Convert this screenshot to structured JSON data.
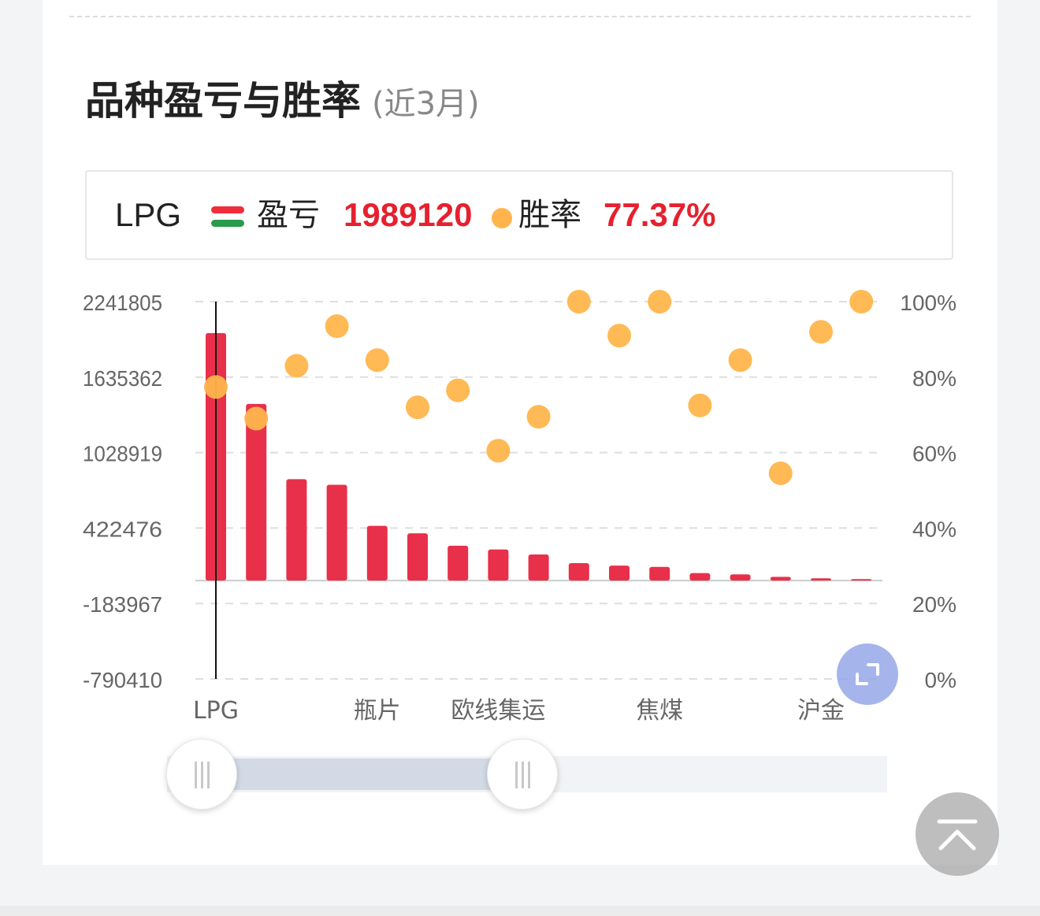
{
  "header": {
    "title": "品种盈亏与胜率",
    "subtitle": "(近3月)"
  },
  "legend": {
    "selected_name": "LPG",
    "pnl_label": "盈亏",
    "pnl_value": "1989120",
    "winrate_label": "胜率",
    "winrate_value": "77.37%"
  },
  "colors": {
    "bar": "#e8304a",
    "dot": "#ffb54c",
    "value_red": "#e5212f",
    "swatch_red": "#ef2d3b",
    "swatch_green": "#2b9a4a"
  },
  "icons": {
    "expand": "expand-icon",
    "back_to_top": "arrow-up-icon",
    "slider_handle": "grip-icon"
  },
  "chart_data": {
    "type": "bar",
    "categories": [
      "LPG",
      "",
      "",
      "",
      "瓶片",
      "",
      "",
      "欧线集运",
      "",
      "",
      "",
      "焦煤",
      "",
      "",
      "",
      "沪金",
      ""
    ],
    "x_tick_labels": [
      "LPG",
      "瓶片",
      "欧线集运",
      "焦煤",
      "沪金"
    ],
    "series": [
      {
        "type": "bar",
        "axis": "left",
        "values": [
          1989120,
          1420000,
          815000,
          770000,
          440000,
          380000,
          280000,
          250000,
          210000,
          140000,
          120000,
          110000,
          60000,
          50000,
          30000,
          18000,
          12000
        ]
      },
      {
        "type": "scatter",
        "axis": "right",
        "values": [
          77.37,
          69,
          83,
          93.5,
          84.5,
          72,
          76.5,
          60.5,
          69.5,
          100,
          91,
          100,
          72.5,
          84.5,
          54.5,
          92,
          100
        ]
      }
    ],
    "left_axis": {
      "ticks": [
        2241805,
        1635362,
        1028919,
        422476,
        -183967,
        -790410
      ],
      "min": -790410,
      "max": 2241805
    },
    "right_axis": {
      "ticks": [
        "100%",
        "80%",
        "60%",
        "40%",
        "20%",
        "0%"
      ],
      "min": 0,
      "max": 100
    },
    "grid": true,
    "selected_index": 0
  }
}
